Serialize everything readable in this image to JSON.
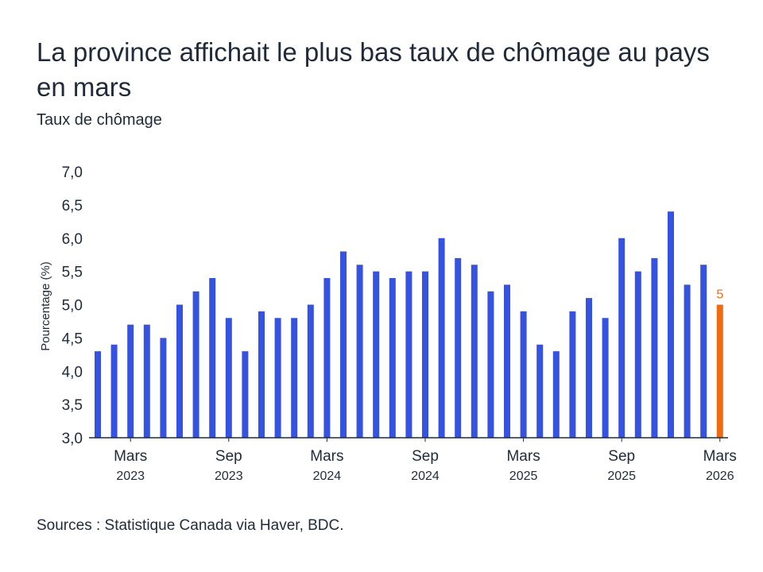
{
  "title": "La province affichait le plus bas taux de chômage au pays en mars",
  "subtitle": "Taux de chômage",
  "source": "Sources : Statistique Canada via Haver, BDC.",
  "colors": {
    "bar": "#3652e0",
    "highlight": "#f06a12",
    "axis": "#1f2b3a"
  },
  "chart_data": {
    "type": "bar",
    "title": "La province affichait le plus bas taux de chômage au pays en mars",
    "subtitle": "Taux de chômage",
    "ylabel": "Pourcentage (%)",
    "ylim": [
      3.0,
      7.0
    ],
    "yticks": [
      "3,0",
      "3,5",
      "4,0",
      "4,5",
      "5,0",
      "5,5",
      "6,0",
      "6,5",
      "7,0"
    ],
    "grid": false,
    "categories": [
      "2023-01",
      "2023-02",
      "2023-03",
      "2023-04",
      "2023-05",
      "2023-06",
      "2023-07",
      "2023-08",
      "2023-09",
      "2023-10",
      "2023-11",
      "2023-12",
      "2024-01",
      "2024-02",
      "2024-03",
      "2024-04",
      "2024-05",
      "2024-06",
      "2024-07",
      "2024-08",
      "2024-09",
      "2024-10",
      "2024-11",
      "2024-12",
      "2025-01",
      "2025-02",
      "2025-03",
      "2025-04",
      "2025-05",
      "2025-06",
      "2025-07",
      "2025-08",
      "2025-09",
      "2025-10",
      "2025-11",
      "2025-12",
      "2026-01",
      "2026-02",
      "2026-03"
    ],
    "values": [
      4.3,
      4.4,
      4.7,
      4.7,
      4.5,
      5.0,
      5.2,
      5.4,
      4.8,
      4.3,
      4.9,
      4.8,
      4.8,
      5.0,
      5.4,
      5.8,
      5.6,
      5.5,
      5.4,
      5.5,
      5.5,
      6.0,
      5.7,
      5.6,
      5.2,
      5.3,
      4.9,
      4.4,
      4.3,
      4.9,
      5.1,
      4.8,
      6.0,
      5.5,
      5.7,
      6.4,
      5.3,
      5.6,
      5.0
    ],
    "highlight_index": 38,
    "data_label": "5",
    "xticks": [
      {
        "category": "2023-03",
        "month": "Mars",
        "year": "2023"
      },
      {
        "category": "2023-09",
        "month": "Sep",
        "year": "2023"
      },
      {
        "category": "2024-03",
        "month": "Mars",
        "year": "2024"
      },
      {
        "category": "2024-09",
        "month": "Sep",
        "year": "2024"
      },
      {
        "category": "2025-03",
        "month": "Mars",
        "year": "2025"
      },
      {
        "category": "2025-09",
        "month": "Sep",
        "year": "2025"
      },
      {
        "category": "2026-03",
        "month": "Mars",
        "year": "2026"
      }
    ]
  }
}
